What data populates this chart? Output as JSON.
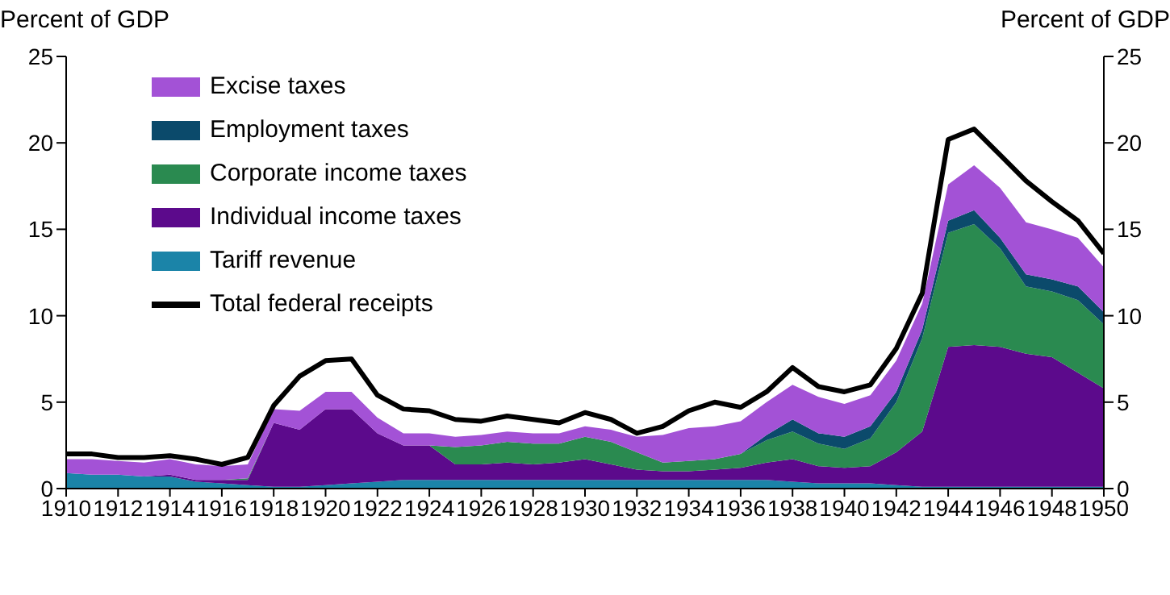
{
  "chart_data": {
    "type": "area",
    "stacked": true,
    "ylabel": "Percent of GDP",
    "y2label": "Percent of GDP",
    "x": [
      1910,
      1911,
      1912,
      1913,
      1914,
      1915,
      1916,
      1917,
      1918,
      1919,
      1920,
      1921,
      1922,
      1923,
      1924,
      1925,
      1926,
      1927,
      1928,
      1929,
      1930,
      1931,
      1932,
      1933,
      1934,
      1935,
      1936,
      1937,
      1938,
      1939,
      1940,
      1941,
      1942,
      1943,
      1944,
      1945,
      1946,
      1947,
      1948,
      1949,
      1950
    ],
    "xlim": [
      1910,
      1950
    ],
    "xticks": [
      1910,
      1912,
      1914,
      1916,
      1918,
      1920,
      1922,
      1924,
      1926,
      1928,
      1930,
      1932,
      1934,
      1936,
      1938,
      1940,
      1942,
      1944,
      1946,
      1948,
      1950
    ],
    "ylim": [
      0,
      25
    ],
    "yticks": [
      0,
      5,
      10,
      15,
      20,
      25
    ],
    "y2lim": [
      0,
      25
    ],
    "y2ticks": [
      0,
      5,
      10,
      15,
      20,
      25
    ],
    "legend": "top left",
    "series": [
      {
        "name": "Tariff revenue",
        "color": "#1b84a8",
        "values": [
          0.9,
          0.8,
          0.8,
          0.7,
          0.7,
          0.4,
          0.3,
          0.2,
          0.1,
          0.1,
          0.2,
          0.3,
          0.4,
          0.5,
          0.5,
          0.5,
          0.5,
          0.5,
          0.5,
          0.5,
          0.5,
          0.5,
          0.5,
          0.5,
          0.5,
          0.5,
          0.5,
          0.5,
          0.4,
          0.3,
          0.3,
          0.3,
          0.2,
          0.1,
          0.1,
          0.1,
          0.1,
          0.1,
          0.1,
          0.1,
          0.1
        ]
      },
      {
        "name": "Individual income taxes",
        "color": "#5c0a8c",
        "values": [
          0,
          0,
          0,
          0,
          0.1,
          0.1,
          0.2,
          0.3,
          3.7,
          3.3,
          4.4,
          4.3,
          2.8,
          2.0,
          2.0,
          0.9,
          0.9,
          1.0,
          0.9,
          1.0,
          1.2,
          0.9,
          0.6,
          0.5,
          0.5,
          0.6,
          0.7,
          1.0,
          1.3,
          1.0,
          0.9,
          1.0,
          1.9,
          3.2,
          8.1,
          8.2,
          8.1,
          7.7,
          7.5,
          6.6,
          5.7
        ]
      },
      {
        "name": "Corporate income taxes",
        "color": "#2a8a50",
        "values": [
          0,
          0,
          0,
          0,
          0,
          0,
          0,
          0.1,
          0,
          0,
          0,
          0,
          0,
          0,
          0,
          1.0,
          1.1,
          1.2,
          1.2,
          1.1,
          1.3,
          1.3,
          1.0,
          0.5,
          0.6,
          0.6,
          0.8,
          1.3,
          1.6,
          1.3,
          1.1,
          1.6,
          2.9,
          5.4,
          6.6,
          7.0,
          5.7,
          3.9,
          3.8,
          4.2,
          3.7
        ]
      },
      {
        "name": "Employment taxes",
        "color": "#0b4a6b",
        "values": [
          0,
          0,
          0,
          0,
          0,
          0,
          0,
          0,
          0,
          0,
          0,
          0,
          0,
          0,
          0,
          0,
          0,
          0,
          0,
          0,
          0,
          0,
          0,
          0,
          0,
          0,
          0,
          0.3,
          0.7,
          0.6,
          0.7,
          0.7,
          0.6,
          0.5,
          0.7,
          0.8,
          0.6,
          0.7,
          0.7,
          0.8,
          0.7
        ]
      },
      {
        "name": "Excise taxes",
        "color": "#a352d6",
        "values": [
          0.8,
          0.9,
          0.8,
          0.8,
          0.9,
          0.9,
          0.8,
          0.8,
          0.8,
          1.1,
          1.0,
          1.0,
          0.9,
          0.7,
          0.7,
          0.6,
          0.6,
          0.6,
          0.6,
          0.6,
          0.6,
          0.7,
          0.9,
          1.6,
          1.9,
          1.9,
          1.9,
          1.9,
          2.0,
          2.1,
          1.9,
          1.8,
          1.8,
          1.5,
          2.1,
          2.6,
          2.9,
          3.0,
          2.9,
          2.8,
          2.6
        ]
      },
      {
        "name": "Total federal receipts",
        "type": "line",
        "color": "#000000",
        "values": [
          2.0,
          2.0,
          1.8,
          1.8,
          1.9,
          1.7,
          1.4,
          1.8,
          4.8,
          6.5,
          7.4,
          7.5,
          5.4,
          4.6,
          4.5,
          4.0,
          3.9,
          4.2,
          4.0,
          3.8,
          4.4,
          4.0,
          3.2,
          3.6,
          4.5,
          5.0,
          4.7,
          5.6,
          7.0,
          5.9,
          5.6,
          6.0,
          8.1,
          11.3,
          20.2,
          20.8,
          19.3,
          17.8,
          16.6,
          15.5,
          13.6
        ]
      }
    ]
  }
}
